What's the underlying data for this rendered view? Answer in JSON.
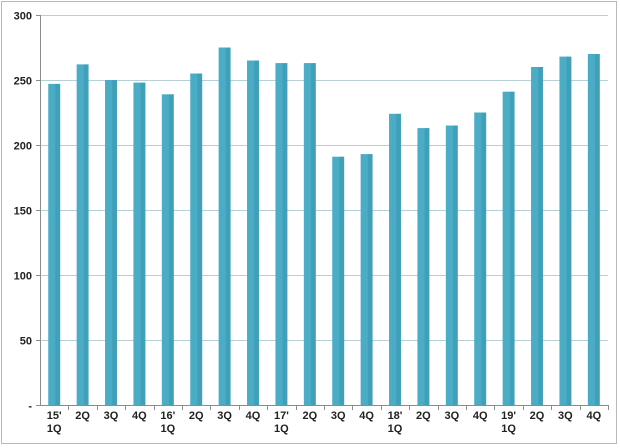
{
  "chart_data": {
    "type": "bar",
    "categories": [
      [
        "15'",
        "1Q"
      ],
      [
        "2Q"
      ],
      [
        "3Q"
      ],
      [
        "4Q"
      ],
      [
        "16'",
        "1Q"
      ],
      [
        "2Q"
      ],
      [
        "3Q"
      ],
      [
        "4Q"
      ],
      [
        "17'",
        "1Q"
      ],
      [
        "2Q"
      ],
      [
        "3Q"
      ],
      [
        "4Q"
      ],
      [
        "18'",
        "1Q"
      ],
      [
        "2Q"
      ],
      [
        "3Q"
      ],
      [
        "4Q"
      ],
      [
        "19'",
        "1Q"
      ],
      [
        "2Q"
      ],
      [
        "3Q"
      ],
      [
        "4Q"
      ]
    ],
    "values": [
      247,
      262,
      250,
      248,
      239,
      255,
      275,
      265,
      263,
      263,
      191,
      193,
      224,
      213,
      215,
      225,
      241,
      260,
      268,
      270
    ],
    "ylim": [
      0,
      300
    ],
    "yticks": [
      0,
      50,
      100,
      150,
      200,
      250,
      300
    ],
    "ytick_labels": [
      "-",
      "50",
      "100",
      "150",
      "200",
      "250",
      "300"
    ],
    "grid": true,
    "bar_color": "#4bacc6",
    "title": "",
    "xlabel": "",
    "ylabel": ""
  }
}
